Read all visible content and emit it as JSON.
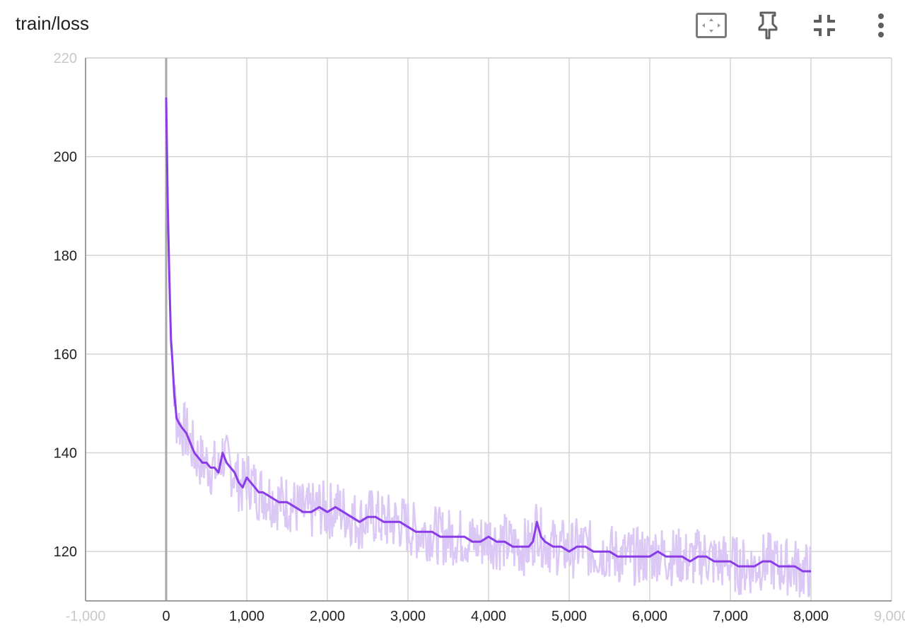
{
  "card": {
    "title": "train/loss",
    "toolbar": [
      {
        "name": "fit-domain-icon"
      },
      {
        "name": "pin-icon"
      },
      {
        "name": "collapse-icon"
      },
      {
        "name": "more-vert-icon"
      }
    ]
  },
  "chart_data": {
    "type": "line",
    "title": "train/loss",
    "xlabel": "",
    "ylabel": "",
    "xlim": [
      -1000,
      9000
    ],
    "ylim": [
      110,
      220
    ],
    "x_ticks": [
      -1000,
      0,
      1000,
      2000,
      3000,
      4000,
      5000,
      6000,
      7000,
      8000,
      9000
    ],
    "x_tick_labels": [
      "-1,000",
      "0",
      "1,000",
      "2,000",
      "3,000",
      "4,000",
      "5,000",
      "6,000",
      "7,000",
      "8,000",
      "9,000"
    ],
    "y_ticks": [
      120,
      140,
      160,
      180,
      200,
      220
    ],
    "y_tick_labels": [
      "120",
      "140",
      "160",
      "180",
      "200",
      "220"
    ],
    "grid": true,
    "colors": {
      "smoothed": "#8a3ce6",
      "raw": "#dcc8f5",
      "grid": "#d4d4d4",
      "zero_line": "#a8a8a8"
    },
    "series": [
      {
        "style": "smoothed",
        "x": [
          0,
          20,
          40,
          60,
          80,
          100,
          130,
          160,
          200,
          250,
          300,
          350,
          400,
          450,
          500,
          550,
          600,
          650,
          700,
          750,
          800,
          850,
          900,
          950,
          1000,
          1050,
          1100,
          1150,
          1200,
          1300,
          1400,
          1500,
          1600,
          1700,
          1800,
          1900,
          2000,
          2100,
          2200,
          2300,
          2400,
          2500,
          2600,
          2700,
          2800,
          2900,
          3000,
          3100,
          3200,
          3300,
          3400,
          3500,
          3600,
          3700,
          3800,
          3900,
          4000,
          4100,
          4200,
          4300,
          4400,
          4500,
          4550,
          4600,
          4650,
          4700,
          4800,
          4900,
          5000,
          5100,
          5200,
          5300,
          5400,
          5500,
          5600,
          5700,
          5800,
          5900,
          6000,
          6100,
          6200,
          6300,
          6400,
          6500,
          6600,
          6700,
          6800,
          6900,
          7000,
          7100,
          7200,
          7300,
          7400,
          7500,
          7600,
          7700,
          7800,
          7900,
          8000
        ],
        "y": [
          212,
          190,
          175,
          163,
          158,
          152,
          147,
          146,
          145,
          144,
          142,
          140,
          139,
          138,
          138,
          137,
          137,
          136,
          140,
          138,
          137,
          136,
          134,
          133,
          135,
          134,
          133,
          132,
          132,
          131,
          130,
          130,
          129,
          128,
          128,
          129,
          128,
          129,
          128,
          127,
          126,
          127,
          127,
          126,
          126,
          126,
          125,
          124,
          124,
          124,
          123,
          123,
          123,
          123,
          122,
          122,
          123,
          122,
          122,
          121,
          121,
          121,
          122,
          126,
          123,
          122,
          121,
          121,
          120,
          121,
          121,
          120,
          120,
          120,
          119,
          119,
          119,
          119,
          119,
          120,
          119,
          119,
          119,
          118,
          119,
          119,
          118,
          118,
          118,
          117,
          117,
          117,
          118,
          118,
          117,
          117,
          117,
          116,
          116
        ]
      }
    ]
  }
}
